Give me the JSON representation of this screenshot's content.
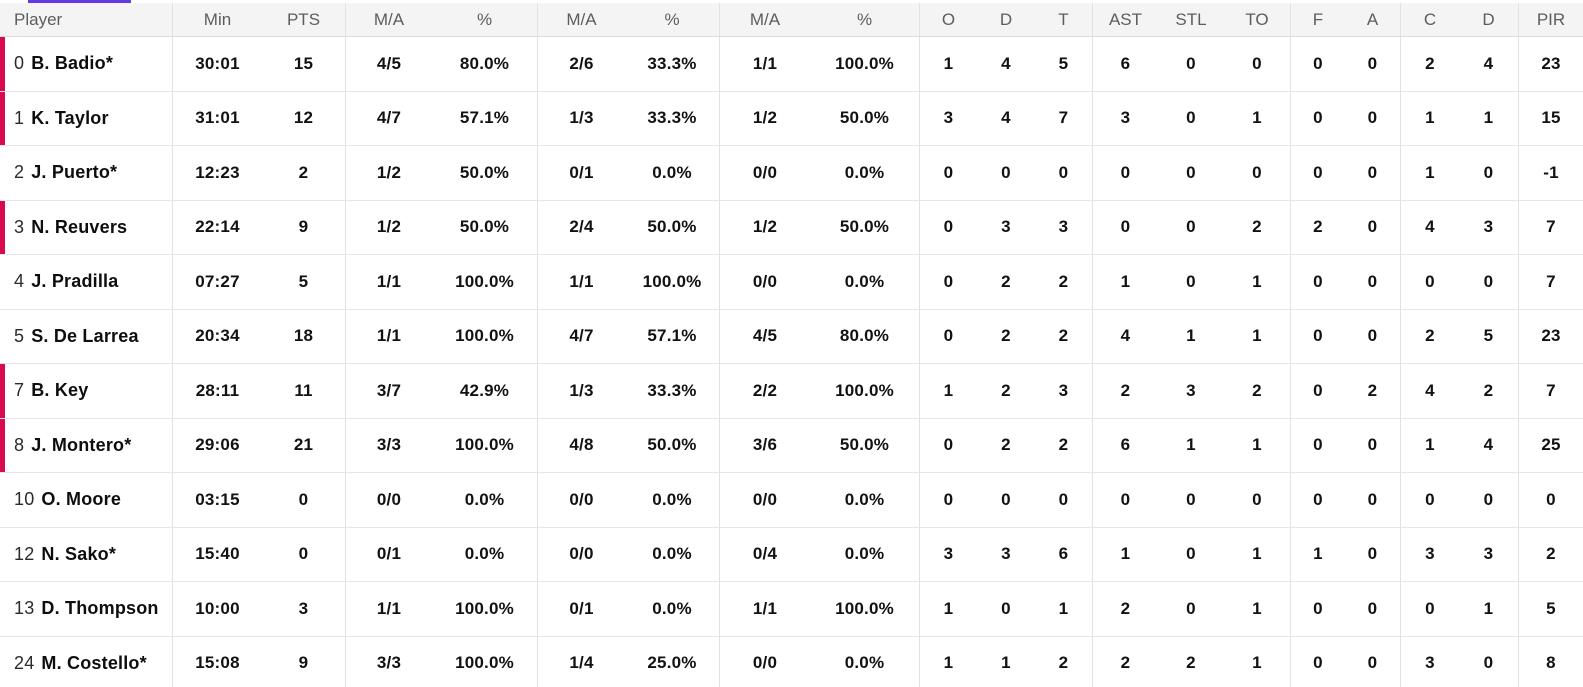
{
  "colors": {
    "on_court_marker": "#d90b4e",
    "tab_underline": "#6639e0",
    "header_bg": "#f4f4f4",
    "row_border": "#e6e6e6",
    "header_text": "#5d5d5d",
    "stat_text": "#121212"
  },
  "table": {
    "columns": [
      "Player",
      "Min",
      "PTS",
      "M/A",
      "%",
      "M/A",
      "%",
      "M/A",
      "%",
      "O",
      "D",
      "T",
      "AST",
      "STL",
      "TO",
      "F",
      "A",
      "C",
      "D",
      "PIR"
    ],
    "players": [
      {
        "number": "0",
        "name": "B. Badio*",
        "on_court": true,
        "min": "30:01",
        "pts": "15",
        "fg2_ma": "4/5",
        "fg2_pct": "80.0%",
        "fg3_ma": "2/6",
        "fg3_pct": "33.3%",
        "ft_ma": "1/1",
        "ft_pct": "100.0%",
        "reb_o": "1",
        "reb_d": "4",
        "reb_t": "5",
        "ast": "6",
        "stl": "0",
        "to": "0",
        "f": "0",
        "a": "0",
        "c": "2",
        "d": "4",
        "pir": "23"
      },
      {
        "number": "1",
        "name": "K. Taylor",
        "on_court": true,
        "min": "31:01",
        "pts": "12",
        "fg2_ma": "4/7",
        "fg2_pct": "57.1%",
        "fg3_ma": "1/3",
        "fg3_pct": "33.3%",
        "ft_ma": "1/2",
        "ft_pct": "50.0%",
        "reb_o": "3",
        "reb_d": "4",
        "reb_t": "7",
        "ast": "3",
        "stl": "0",
        "to": "1",
        "f": "0",
        "a": "0",
        "c": "1",
        "d": "1",
        "pir": "15"
      },
      {
        "number": "2",
        "name": "J. Puerto*",
        "on_court": false,
        "min": "12:23",
        "pts": "2",
        "fg2_ma": "1/2",
        "fg2_pct": "50.0%",
        "fg3_ma": "0/1",
        "fg3_pct": "0.0%",
        "ft_ma": "0/0",
        "ft_pct": "0.0%",
        "reb_o": "0",
        "reb_d": "0",
        "reb_t": "0",
        "ast": "0",
        "stl": "0",
        "to": "0",
        "f": "0",
        "a": "0",
        "c": "1",
        "d": "0",
        "pir": "-1"
      },
      {
        "number": "3",
        "name": "N. Reuvers",
        "on_court": true,
        "min": "22:14",
        "pts": "9",
        "fg2_ma": "1/2",
        "fg2_pct": "50.0%",
        "fg3_ma": "2/4",
        "fg3_pct": "50.0%",
        "ft_ma": "1/2",
        "ft_pct": "50.0%",
        "reb_o": "0",
        "reb_d": "3",
        "reb_t": "3",
        "ast": "0",
        "stl": "0",
        "to": "2",
        "f": "2",
        "a": "0",
        "c": "4",
        "d": "3",
        "pir": "7"
      },
      {
        "number": "4",
        "name": "J. Pradilla",
        "on_court": false,
        "min": "07:27",
        "pts": "5",
        "fg2_ma": "1/1",
        "fg2_pct": "100.0%",
        "fg3_ma": "1/1",
        "fg3_pct": "100.0%",
        "ft_ma": "0/0",
        "ft_pct": "0.0%",
        "reb_o": "0",
        "reb_d": "2",
        "reb_t": "2",
        "ast": "1",
        "stl": "0",
        "to": "1",
        "f": "0",
        "a": "0",
        "c": "0",
        "d": "0",
        "pir": "7"
      },
      {
        "number": "5",
        "name": "S. De Larrea",
        "on_court": false,
        "min": "20:34",
        "pts": "18",
        "fg2_ma": "1/1",
        "fg2_pct": "100.0%",
        "fg3_ma": "4/7",
        "fg3_pct": "57.1%",
        "ft_ma": "4/5",
        "ft_pct": "80.0%",
        "reb_o": "0",
        "reb_d": "2",
        "reb_t": "2",
        "ast": "4",
        "stl": "1",
        "to": "1",
        "f": "0",
        "a": "0",
        "c": "2",
        "d": "5",
        "pir": "23"
      },
      {
        "number": "7",
        "name": "B. Key",
        "on_court": true,
        "min": "28:11",
        "pts": "11",
        "fg2_ma": "3/7",
        "fg2_pct": "42.9%",
        "fg3_ma": "1/3",
        "fg3_pct": "33.3%",
        "ft_ma": "2/2",
        "ft_pct": "100.0%",
        "reb_o": "1",
        "reb_d": "2",
        "reb_t": "3",
        "ast": "2",
        "stl": "3",
        "to": "2",
        "f": "0",
        "a": "2",
        "c": "4",
        "d": "2",
        "pir": "7"
      },
      {
        "number": "8",
        "name": "J. Montero*",
        "on_court": true,
        "min": "29:06",
        "pts": "21",
        "fg2_ma": "3/3",
        "fg2_pct": "100.0%",
        "fg3_ma": "4/8",
        "fg3_pct": "50.0%",
        "ft_ma": "3/6",
        "ft_pct": "50.0%",
        "reb_o": "0",
        "reb_d": "2",
        "reb_t": "2",
        "ast": "6",
        "stl": "1",
        "to": "1",
        "f": "0",
        "a": "0",
        "c": "1",
        "d": "4",
        "pir": "25"
      },
      {
        "number": "10",
        "name": "O. Moore",
        "on_court": false,
        "min": "03:15",
        "pts": "0",
        "fg2_ma": "0/0",
        "fg2_pct": "0.0%",
        "fg3_ma": "0/0",
        "fg3_pct": "0.0%",
        "ft_ma": "0/0",
        "ft_pct": "0.0%",
        "reb_o": "0",
        "reb_d": "0",
        "reb_t": "0",
        "ast": "0",
        "stl": "0",
        "to": "0",
        "f": "0",
        "a": "0",
        "c": "0",
        "d": "0",
        "pir": "0"
      },
      {
        "number": "12",
        "name": "N. Sako*",
        "on_court": false,
        "min": "15:40",
        "pts": "0",
        "fg2_ma": "0/1",
        "fg2_pct": "0.0%",
        "fg3_ma": "0/0",
        "fg3_pct": "0.0%",
        "ft_ma": "0/4",
        "ft_pct": "0.0%",
        "reb_o": "3",
        "reb_d": "3",
        "reb_t": "6",
        "ast": "1",
        "stl": "0",
        "to": "1",
        "f": "1",
        "a": "0",
        "c": "3",
        "d": "3",
        "pir": "2"
      },
      {
        "number": "13",
        "name": "D. Thompson",
        "on_court": false,
        "min": "10:00",
        "pts": "3",
        "fg2_ma": "1/1",
        "fg2_pct": "100.0%",
        "fg3_ma": "0/1",
        "fg3_pct": "0.0%",
        "ft_ma": "1/1",
        "ft_pct": "100.0%",
        "reb_o": "1",
        "reb_d": "0",
        "reb_t": "1",
        "ast": "2",
        "stl": "0",
        "to": "1",
        "f": "0",
        "a": "0",
        "c": "0",
        "d": "1",
        "pir": "5"
      },
      {
        "number": "24",
        "name": "M. Costello*",
        "on_court": false,
        "min": "15:08",
        "pts": "9",
        "fg2_ma": "3/3",
        "fg2_pct": "100.0%",
        "fg3_ma": "1/4",
        "fg3_pct": "25.0%",
        "ft_ma": "0/0",
        "ft_pct": "0.0%",
        "reb_o": "1",
        "reb_d": "1",
        "reb_t": "2",
        "ast": "2",
        "stl": "2",
        "to": "1",
        "f": "0",
        "a": "0",
        "c": "3",
        "d": "0",
        "pir": "8"
      }
    ]
  }
}
